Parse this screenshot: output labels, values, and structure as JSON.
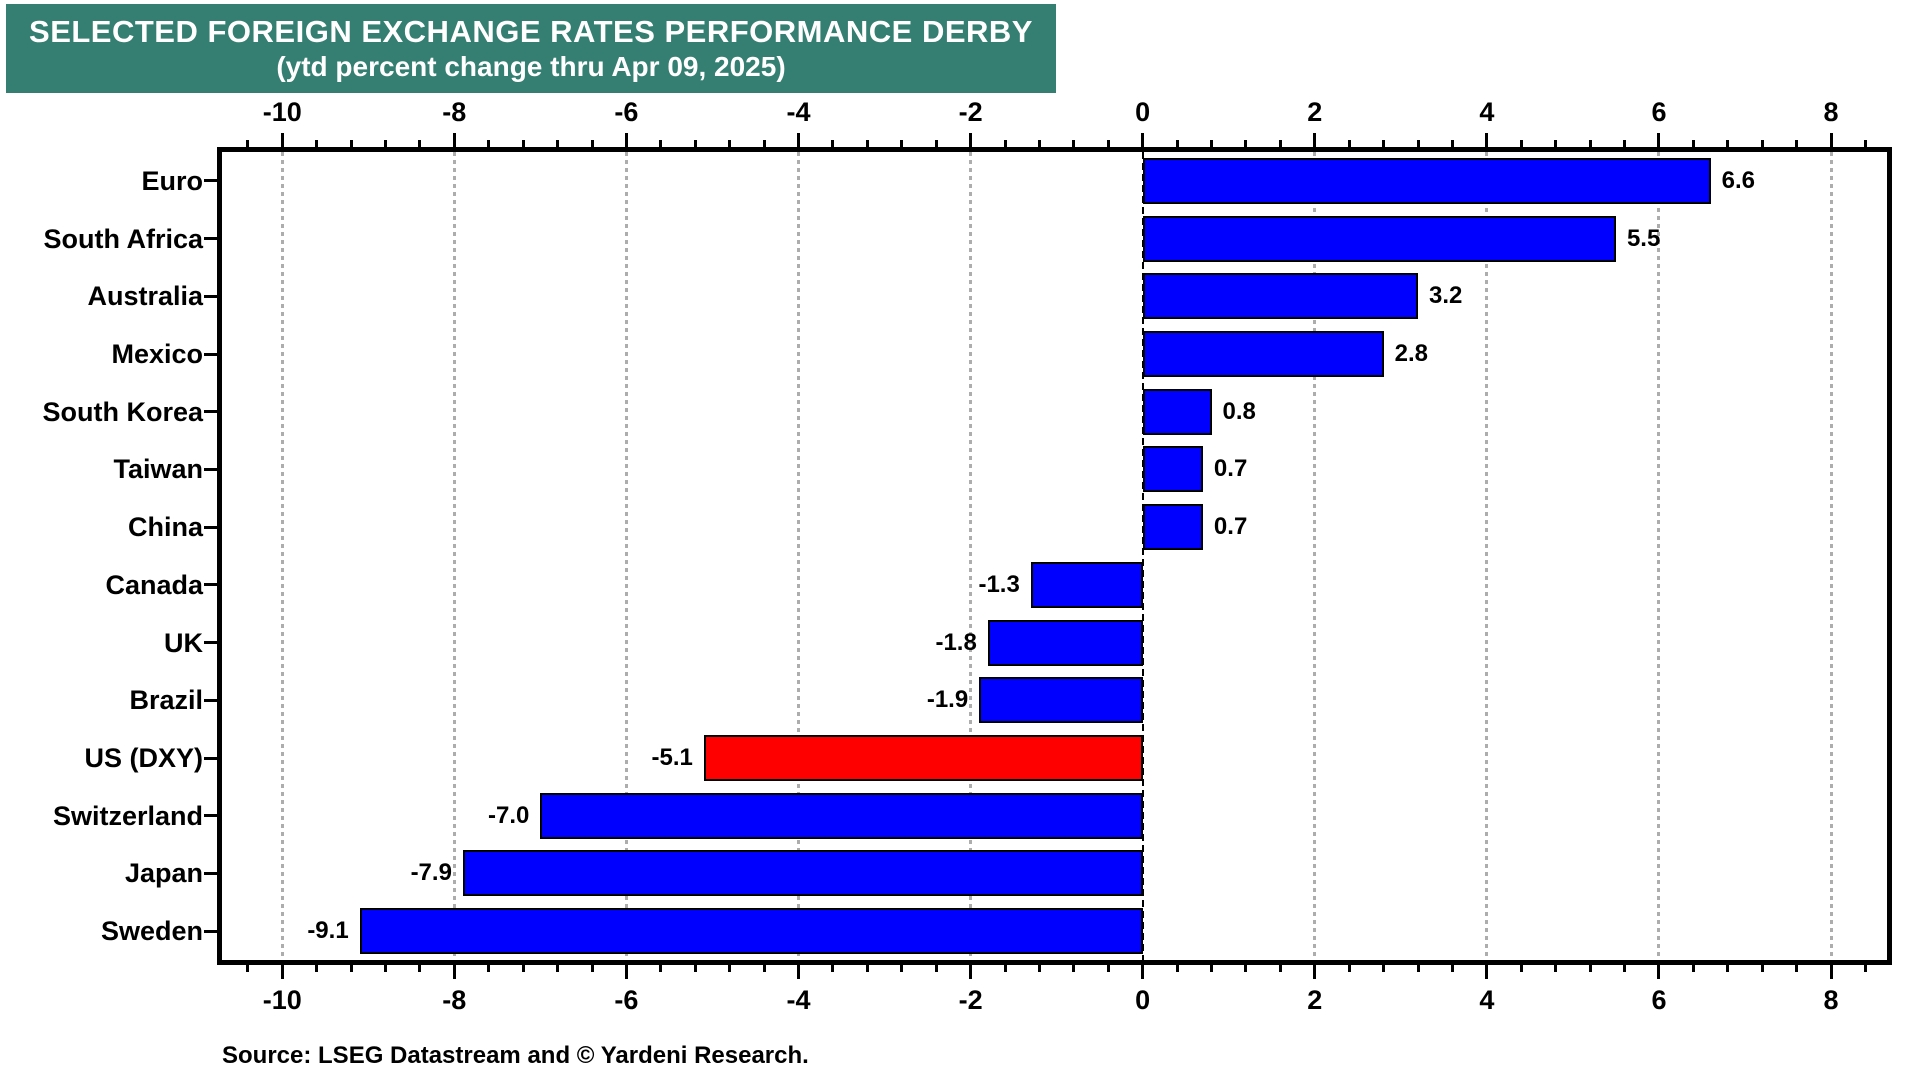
{
  "title": {
    "line1": "SELECTED FOREIGN EXCHANGE RATES PERFORMANCE DERBY",
    "line2": "(ytd percent change thru Apr 09, 2025)"
  },
  "source_note": "Source: LSEG Datastream and © Yardeni Research.",
  "colors": {
    "header_bg": "#347F71",
    "header_text": "#FFFFFF",
    "bar_default": "#0000FF",
    "bar_highlight": "#FF0000",
    "bar_outline": "#000000",
    "grid": "#ADADAD",
    "axis": "#000000",
    "text": "#000000"
  },
  "chart_data": {
    "type": "bar",
    "orientation": "horizontal",
    "title": "SELECTED FOREIGN EXCHANGE RATES PERFORMANCE DERBY",
    "subtitle": "(ytd percent change thru Apr 09, 2025)",
    "categories": [
      "Euro",
      "South Africa",
      "Australia",
      "Mexico",
      "South Korea",
      "Taiwan",
      "China",
      "Canada",
      "UK",
      "Brazil",
      "US (DXY)",
      "Switzerland",
      "Japan",
      "Sweden"
    ],
    "values": [
      6.6,
      5.5,
      3.2,
      2.8,
      0.8,
      0.7,
      0.7,
      -1.3,
      -1.8,
      -1.9,
      -5.1,
      -7.0,
      -7.9,
      -9.1
    ],
    "value_labels": [
      "6.6",
      "5.5",
      "3.2",
      "2.8",
      "0.8",
      "0.7",
      "0.7",
      "-1.3",
      "-1.8",
      "-1.9",
      "-5.1",
      "-7.0",
      "-7.9",
      "-9.1"
    ],
    "highlight_index": 10,
    "xlabel": "",
    "ylabel": "",
    "xlim": [
      -10.7,
      8.65
    ],
    "x_major_ticks": [
      -10,
      -8,
      -6,
      -4,
      -2,
      0,
      2,
      4,
      6,
      8
    ],
    "x_major_tick_labels": [
      "-10",
      "-8",
      "-6",
      "-4",
      "-2",
      "0",
      "2",
      "4",
      "6",
      "8"
    ],
    "x_minor_tick_step": 0.4,
    "grid": "vertical dotted gridlines at major ticks, dashed black line at zero",
    "axis_tick_label_positions": "top and bottom",
    "legend": "none"
  }
}
